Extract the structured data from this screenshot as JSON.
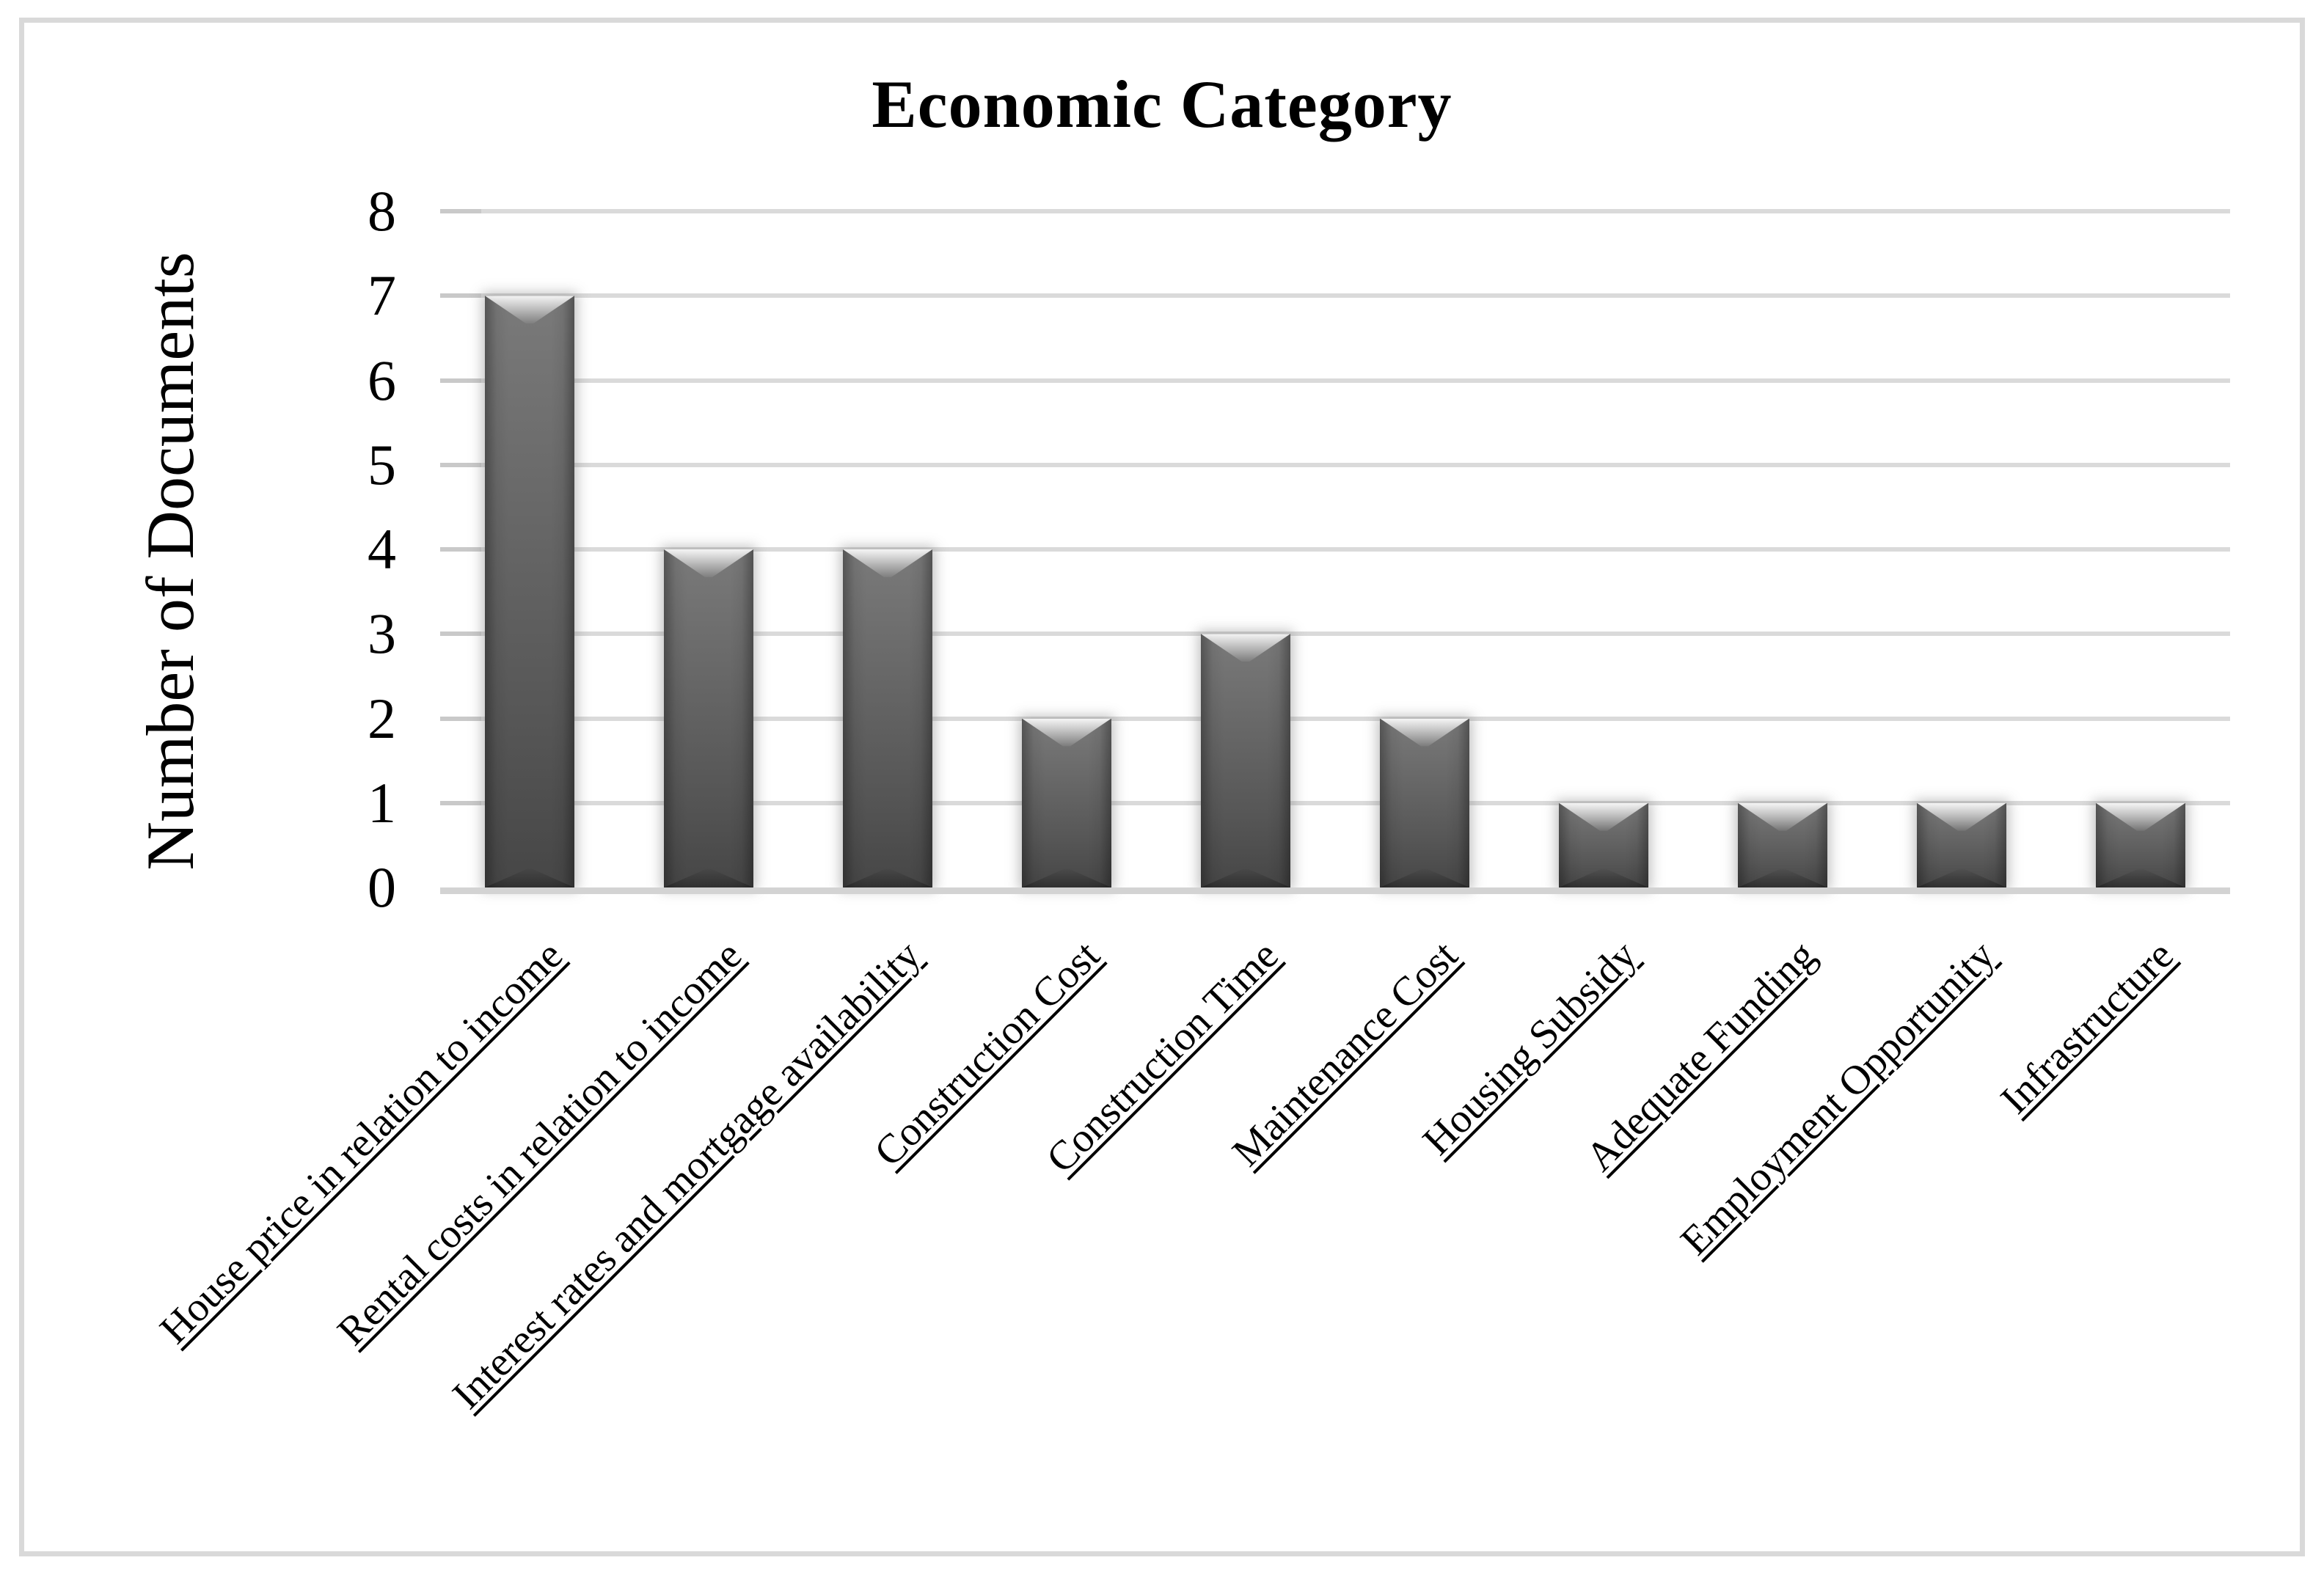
{
  "chart_data": {
    "type": "bar",
    "title": "Economic Category",
    "ylabel": "Number of Documents",
    "xlabel": "",
    "categories": [
      "House price in relation to income",
      "Rental costs in relation to income",
      "Interest rates and mortgage availability",
      "Construction Cost",
      "Construction Time",
      "Maintenance Cost",
      "Housing Subsidy",
      "Adequate Funding",
      "Employment Opportunity",
      "Infrastructure"
    ],
    "values": [
      7,
      4,
      4,
      2,
      3,
      2,
      1,
      1,
      1,
      1
    ],
    "ylim": [
      0,
      8
    ],
    "yticks": [
      0,
      1,
      2,
      3,
      4,
      5,
      6,
      7,
      8
    ],
    "grid": "horizontal-major",
    "legend_position": "none",
    "category_label_rotation_deg": 45,
    "category_labels_underlined": true,
    "bar_style": "beveled-3d",
    "colors": {
      "background": "#ffffff",
      "text": "#000000",
      "bar_fill": "#5f5f5f",
      "gridline": "#dadada",
      "axis_line": "#d3d3d3",
      "tick_mark": "#c9c9c9",
      "frame_border": "#d9d9d9"
    }
  }
}
